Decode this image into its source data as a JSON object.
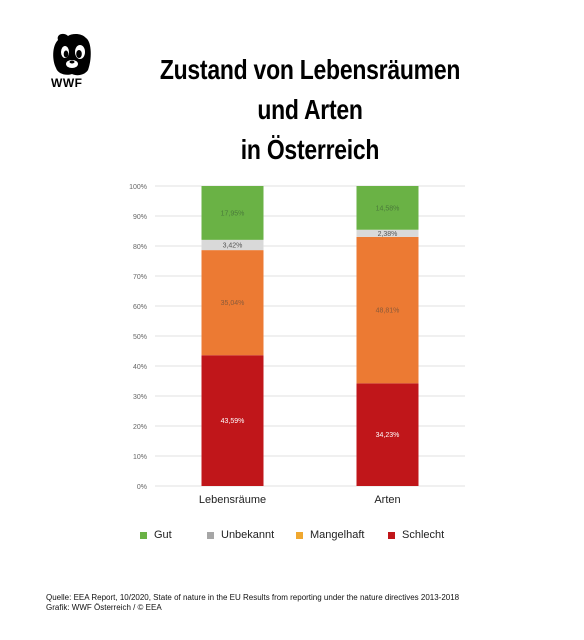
{
  "logo": {
    "text": "WWF"
  },
  "title": {
    "line1": "Zustand von Lebensräumen und Arten",
    "line2": "in Österreich"
  },
  "chart_data": {
    "type": "bar",
    "stacked": true,
    "categories": [
      "Lebensräume",
      "Arten"
    ],
    "series": [
      {
        "name": "Schlecht",
        "color": "#c0161a",
        "values": [
          43.59,
          34.23
        ],
        "labels": [
          "43,59%",
          "34,23%"
        ],
        "label_color": "#ffffff"
      },
      {
        "name": "Mangelhaft",
        "color": "#ec7a33",
        "values": [
          35.04,
          48.81
        ],
        "labels": [
          "35,04%",
          "48,81%"
        ],
        "label_color": "#8a5a3a"
      },
      {
        "name": "Unbekannt",
        "color": "#d9d9d9",
        "values": [
          3.42,
          2.38
        ],
        "labels": [
          "3,42%",
          "2,38%"
        ],
        "label_color": "#555555"
      },
      {
        "name": "Gut",
        "color": "#6ab245",
        "values": [
          17.95,
          14.58
        ],
        "labels": [
          "17,95%",
          "14,58%"
        ],
        "label_color": "#4a7a3a"
      }
    ],
    "y_ticks": [
      "0%",
      "10%",
      "20%",
      "30%",
      "40%",
      "50%",
      "60%",
      "70%",
      "80%",
      "90%",
      "100%"
    ],
    "ylim": [
      0,
      100
    ],
    "grid": true,
    "legend": {
      "position": "bottom",
      "items": [
        {
          "name": "Gut",
          "color": "#6ab245"
        },
        {
          "name": "Unbekannt",
          "color": "#a6a6a6"
        },
        {
          "name": "Mangelhaft",
          "color": "#f0a830"
        },
        {
          "name": "Schlecht",
          "color": "#c0161a"
        }
      ]
    }
  },
  "source": {
    "line1": "Quelle: EEA Report, 10/2020, State of nature in the EU Results from reporting under the nature directives 2013-2018",
    "line2": "Grafik: WWF Österreich / © EEA"
  }
}
